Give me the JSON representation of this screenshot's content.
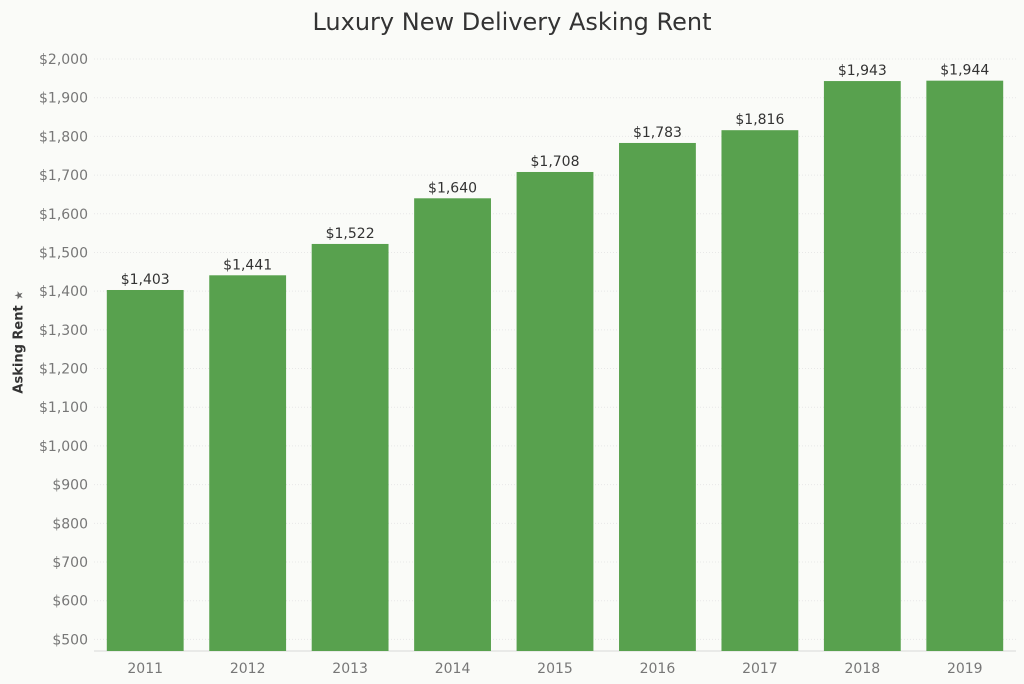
{
  "chart_data": {
    "type": "bar",
    "title": "Luxury New Delivery Asking Rent",
    "xlabel": "",
    "ylabel": "Asking Rent",
    "categories": [
      "2011",
      "2012",
      "2013",
      "2014",
      "2015",
      "2016",
      "2017",
      "2018",
      "2019"
    ],
    "values": [
      1403,
      1441,
      1522,
      1640,
      1708,
      1783,
      1816,
      1943,
      1944
    ],
    "data_labels": [
      "$1,403",
      "$1,441",
      "$1,522",
      "$1,640",
      "$1,708",
      "$1,783",
      "$1,816",
      "$1,943",
      "$1,944"
    ],
    "ylim": [
      470,
      2000
    ],
    "yticks": [
      500,
      600,
      700,
      800,
      900,
      1000,
      1100,
      1200,
      1300,
      1400,
      1500,
      1600,
      1700,
      1800,
      1900,
      2000
    ],
    "ytick_labels": [
      "$500",
      "$600",
      "$700",
      "$800",
      "$900",
      "$1,000",
      "$1,100",
      "$1,200",
      "$1,300",
      "$1,400",
      "$1,500",
      "$1,600",
      "$1,700",
      "$1,800",
      "$1,900",
      "$2,000"
    ],
    "grid": true,
    "legend": "none",
    "colors": {
      "bar": "#58a14e",
      "grid": "#e8e8e8",
      "tick_text": "#777777",
      "label_text": "#333333",
      "background": "#fafbf8"
    },
    "ylabel_icon": "pin-icon"
  }
}
